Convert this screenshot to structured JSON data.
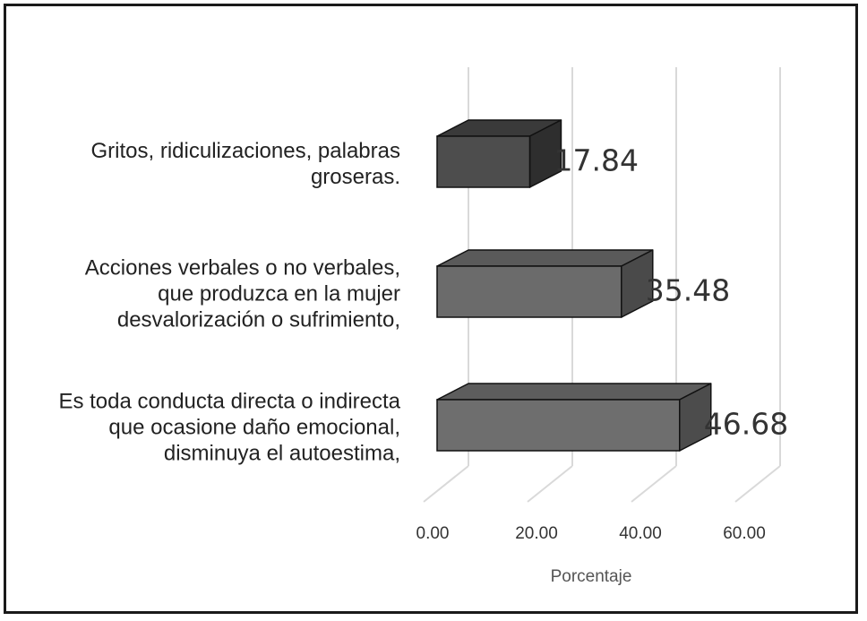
{
  "chart_data": {
    "type": "bar",
    "orientation": "horizontal",
    "style": "3d",
    "categories": [
      [
        "Gritos, ridiculizaciones, palabras",
        "groseras."
      ],
      [
        "Acciones verbales o no verbales,",
        "que produzca en la mujer",
        "desvalorización o sufrimiento,"
      ],
      [
        "Es toda conducta directa o indirecta",
        "que ocasione daño emocional,",
        "disminuya el autoestima,"
      ]
    ],
    "values": [
      17.84,
      35.48,
      46.68
    ],
    "value_labels": [
      "17.84",
      "35.48",
      "46.68"
    ],
    "xlabel": "Porcentaje",
    "xticks": [
      "0.00",
      "20.00",
      "40.00",
      "60.00"
    ],
    "xlim": [
      0,
      60
    ],
    "grid": true,
    "legend": "none",
    "colors": {
      "bar_front": [
        "#4d4d4d",
        "#6b6b6b",
        "#6e6e6e"
      ],
      "bar_top": [
        "#3a3a3a",
        "#5a5a5a",
        "#5d5d5d"
      ],
      "bar_side": [
        "#2e2e2e",
        "#4a4a4a",
        "#4c4c4c"
      ],
      "grid": "#d9d9d9",
      "border": "#1a1a1a"
    }
  }
}
